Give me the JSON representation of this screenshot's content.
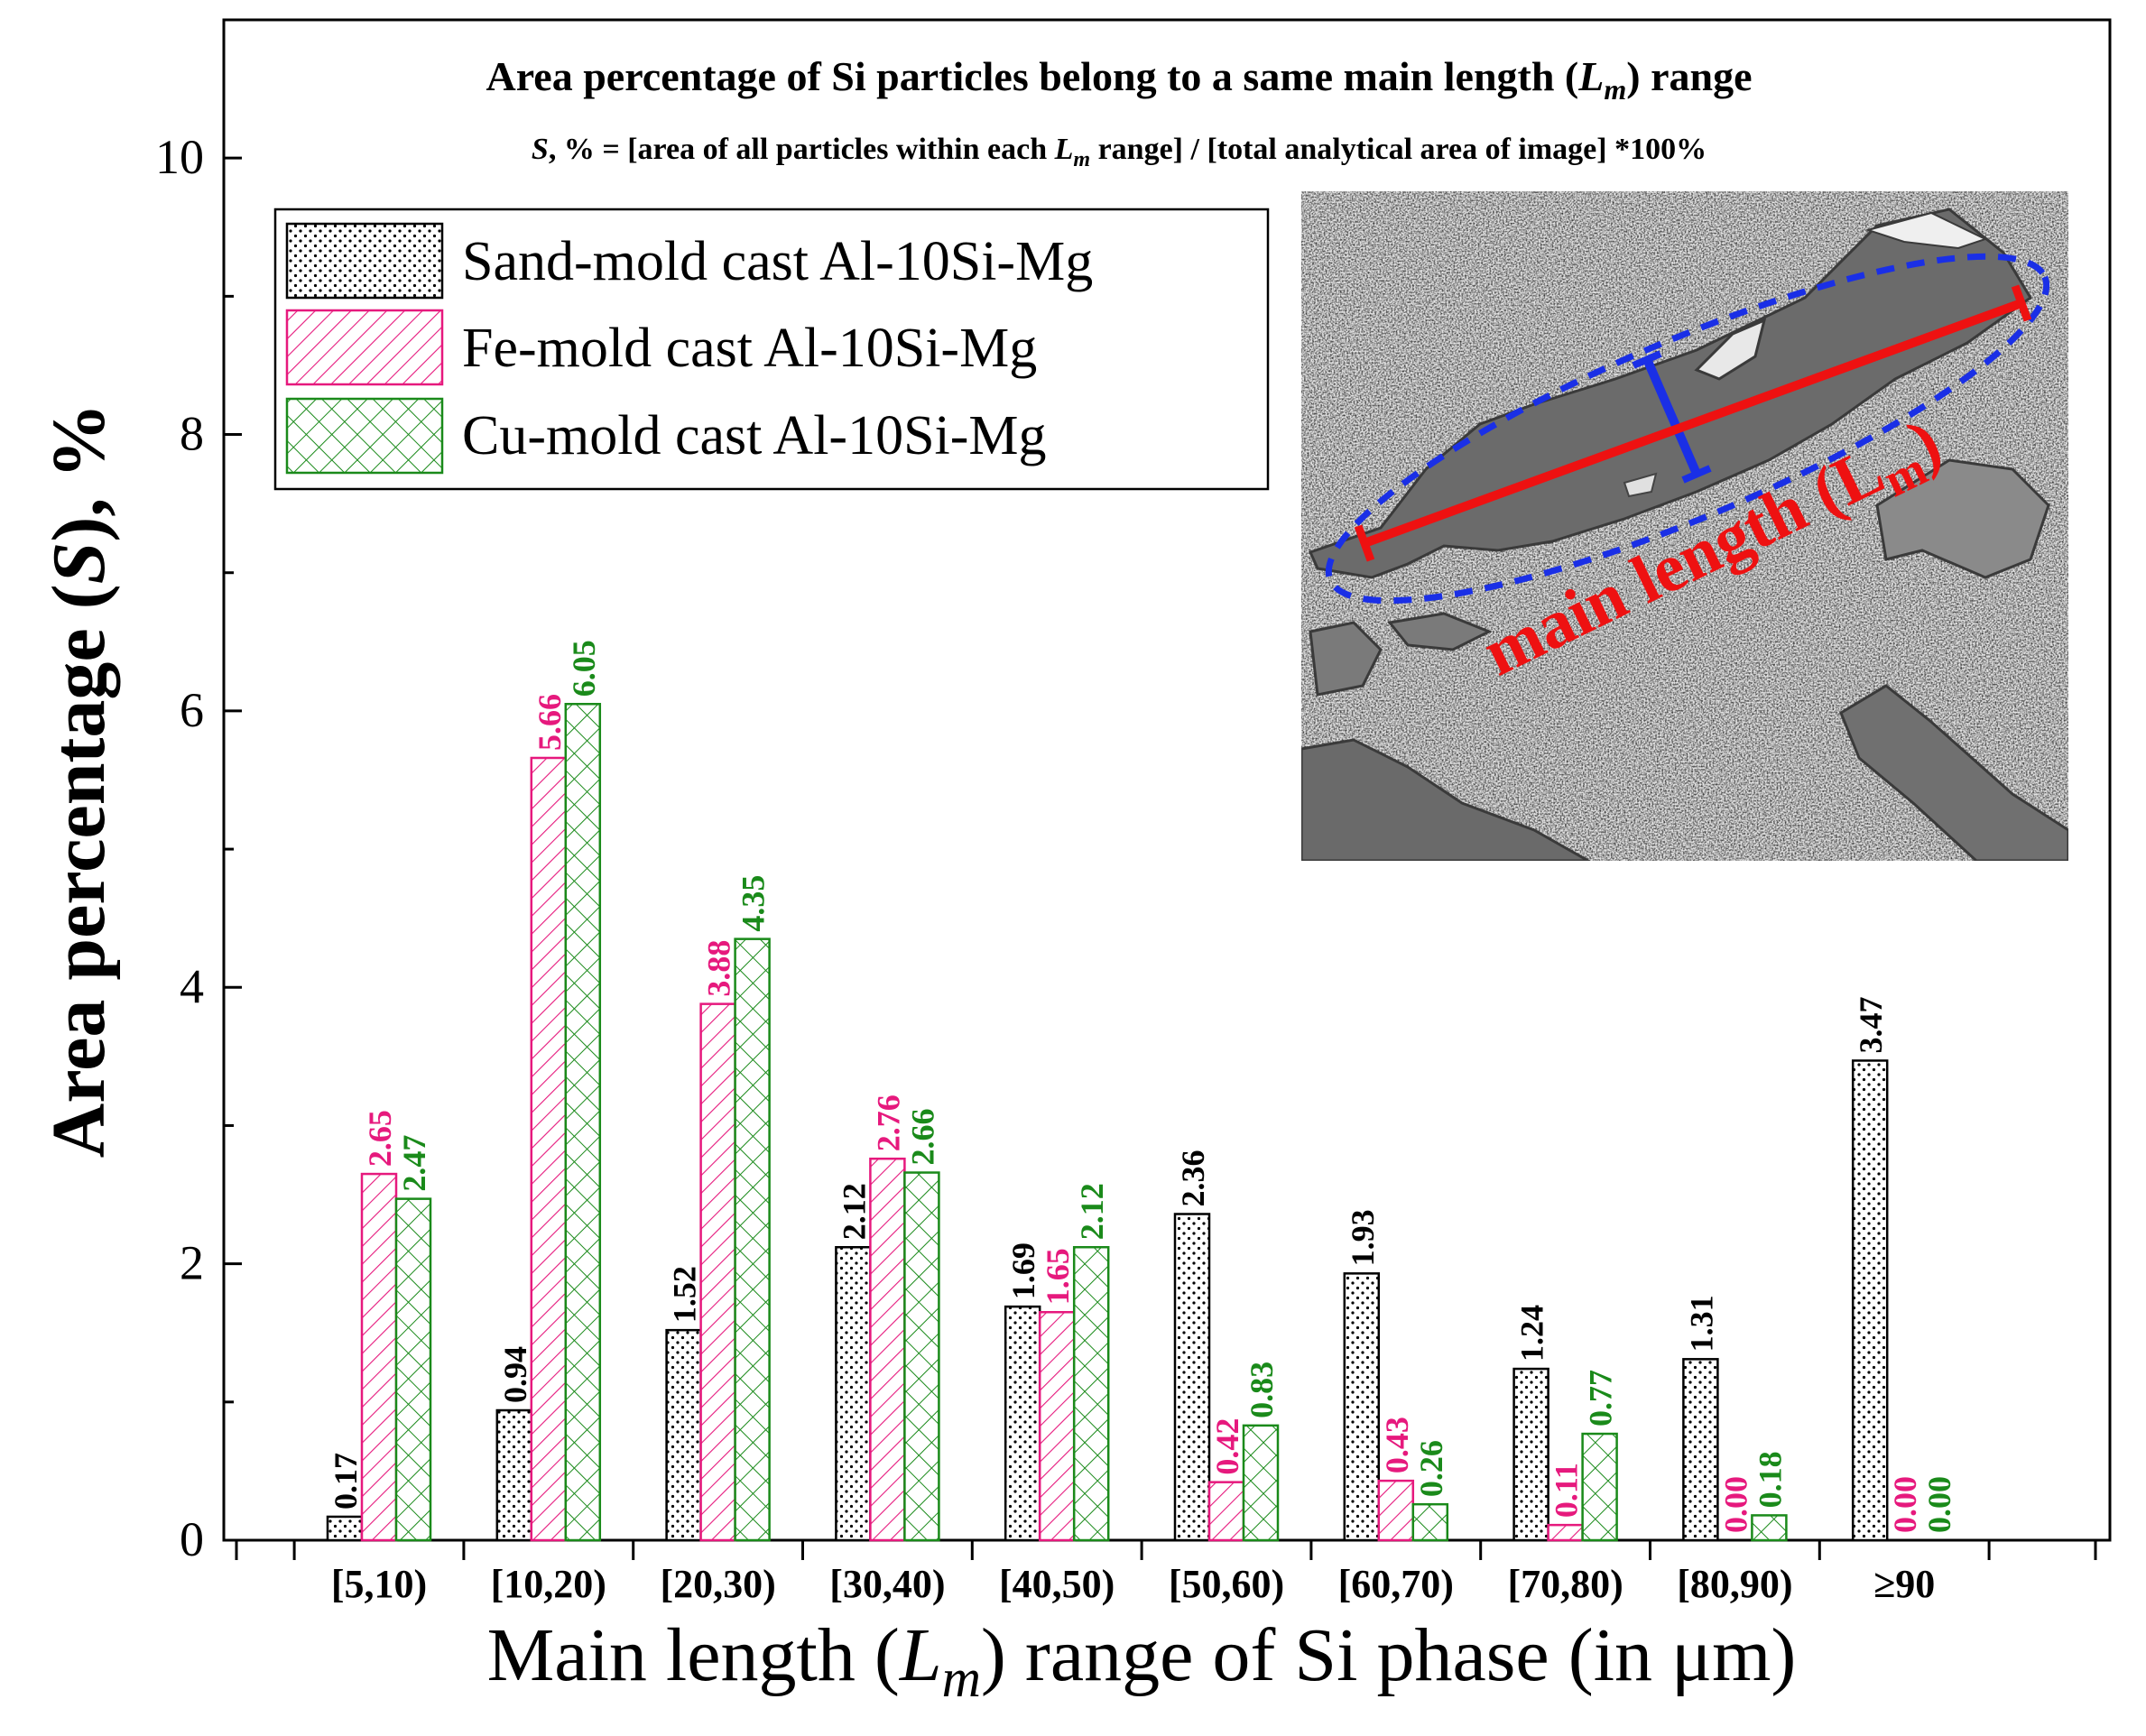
{
  "colors": {
    "sand": "#000000",
    "fe": "#e6197d",
    "cu": "#1a8a1a",
    "axis": "#000000",
    "blue": "#1a2fe6",
    "red": "#ee1111"
  },
  "chart_data": {
    "type": "bar",
    "title": "Area percentage of Si particles belong to a same main length (",
    "title_var": "L",
    "title_sub": "m",
    "title_end": ") range",
    "subtitle_var": "S",
    "subtitle_a": ", % = [area of all particles within each ",
    "subtitle_lvar": "L",
    "subtitle_lsub": "m",
    "subtitle_b": " range] / [total analytical area of image] *100%",
    "ylabel_a": "Area percentage (",
    "ylabel_var": "S",
    "ylabel_b": "), %",
    "xlabel_a": "Main length (",
    "xlabel_var": "L",
    "xlabel_sub": "m",
    "xlabel_b": ") range of Si phase (in μm)",
    "ylim": [
      0,
      11
    ],
    "yticks": [
      "0",
      "2",
      "4",
      "6",
      "8",
      "10"
    ],
    "categories": [
      "[5,10)",
      "[10,20)",
      "[20,30)",
      "[30,40)",
      "[40,50)",
      "[50,60)",
      "[60,70)",
      "[70,80)",
      "[80,90)",
      "≥90"
    ],
    "series": [
      {
        "name": "Sand-mold cast Al-10Si-Mg",
        "pattern": "dots",
        "color": "#000000",
        "values": [
          0.17,
          0.94,
          1.52,
          2.12,
          1.69,
          2.36,
          1.93,
          1.24,
          1.31,
          3.47
        ],
        "labels": [
          "0.17",
          "0.94",
          "1.52",
          "2.12",
          "1.69",
          "2.36",
          "1.93",
          "1.24",
          "1.31",
          "3.47"
        ]
      },
      {
        "name": "Fe-mold cast Al-10Si-Mg",
        "pattern": "diag",
        "color": "#e6197d",
        "values": [
          2.65,
          5.66,
          3.88,
          2.76,
          1.65,
          0.42,
          0.43,
          0.11,
          0.0,
          0.0
        ],
        "labels": [
          "2.65",
          "5.66",
          "3.88",
          "2.76",
          "1.65",
          "0.42",
          "0.43",
          "0.11",
          "0.00",
          "0.00"
        ]
      },
      {
        "name": "Cu-mold cast Al-10Si-Mg",
        "pattern": "cross",
        "color": "#1a8a1a",
        "values": [
          2.47,
          6.05,
          4.35,
          2.66,
          2.12,
          0.83,
          0.26,
          0.77,
          0.18,
          0.0
        ],
        "labels": [
          "2.47",
          "6.05",
          "4.35",
          "2.66",
          "2.12",
          "0.83",
          "0.26",
          "0.77",
          "0.18",
          "0.00"
        ]
      }
    ],
    "inset": {
      "annotation_a": "main length (",
      "annotation_var": "L",
      "annotation_sub": "m",
      "annotation_b": ")"
    }
  }
}
